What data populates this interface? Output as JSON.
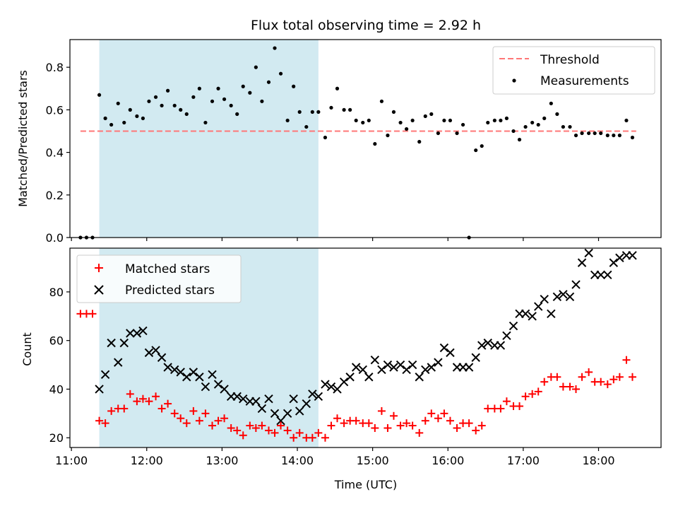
{
  "chart_data": [
    {
      "type": "scatter",
      "title": "Flux total observing time = 2.92 h",
      "xlabel": "",
      "ylabel": "Matched/Predicted stars",
      "xlim": [
        10.98,
        18.83
      ],
      "ylim": [
        0.0,
        0.93
      ],
      "yticks": [
        0.0,
        0.2,
        0.4,
        0.6,
        0.8
      ],
      "ytick_labels": [
        "0.0",
        "0.2",
        "0.4",
        "0.6",
        "0.8"
      ],
      "xticks": [
        11,
        12,
        13,
        14,
        15,
        16,
        17,
        18
      ],
      "shaded_span": [
        11.37,
        14.28
      ],
      "threshold": {
        "value": 0.5,
        "x_range": [
          11.12,
          18.5
        ],
        "color": "#ff7777"
      },
      "legend": {
        "placement": "top-right",
        "entries": [
          "Threshold",
          "Measurements"
        ]
      },
      "series": [
        {
          "name": "Measurements",
          "marker": "dot",
          "color": "#000000",
          "x": [
            11.12,
            11.2,
            11.28,
            11.37,
            11.45,
            11.53,
            11.62,
            11.7,
            11.78,
            11.87,
            11.95,
            12.03,
            12.12,
            12.2,
            12.28,
            12.37,
            12.45,
            12.53,
            12.62,
            12.7,
            12.78,
            12.87,
            12.95,
            13.03,
            13.12,
            13.2,
            13.28,
            13.37,
            13.45,
            13.53,
            13.62,
            13.7,
            13.78,
            13.87,
            13.95,
            14.03,
            14.12,
            14.2,
            14.28,
            14.37,
            14.45,
            14.53,
            14.62,
            14.7,
            14.78,
            14.87,
            14.95,
            15.03,
            15.12,
            15.2,
            15.28,
            15.37,
            15.45,
            15.53,
            15.62,
            15.7,
            15.78,
            15.87,
            15.95,
            16.03,
            16.12,
            16.2,
            16.28,
            16.37,
            16.45,
            16.53,
            16.62,
            16.7,
            16.78,
            16.87,
            16.95,
            17.03,
            17.12,
            17.2,
            17.28,
            17.37,
            17.45,
            17.53,
            17.62,
            17.7,
            17.78,
            17.87,
            17.95,
            18.03,
            18.12,
            18.2,
            18.28,
            18.37,
            18.45
          ],
          "values": [
            0.0,
            0.0,
            0.0,
            0.67,
            0.56,
            0.53,
            0.63,
            0.54,
            0.6,
            0.57,
            0.56,
            0.64,
            0.66,
            0.62,
            0.69,
            0.62,
            0.6,
            0.58,
            0.66,
            0.7,
            0.54,
            0.64,
            0.7,
            0.65,
            0.62,
            0.58,
            0.71,
            0.68,
            0.8,
            0.64,
            0.73,
            0.89,
            0.77,
            0.55,
            0.71,
            0.59,
            0.52,
            0.59,
            0.59,
            0.47,
            0.61,
            0.7,
            0.6,
            0.6,
            0.55,
            0.54,
            0.55,
            0.44,
            0.64,
            0.48,
            0.59,
            0.54,
            0.51,
            0.55,
            0.45,
            0.57,
            0.58,
            0.49,
            0.55,
            0.55,
            0.49,
            0.53,
            0.0,
            0.41,
            0.43,
            0.54,
            0.55,
            0.55,
            0.56,
            0.5,
            0.46,
            0.52,
            0.54,
            0.53,
            0.56,
            0.63,
            0.58,
            0.52,
            0.52,
            0.48,
            0.49,
            0.49,
            0.49,
            0.49,
            0.48,
            0.48,
            0.48,
            0.55,
            0.47
          ]
        }
      ]
    },
    {
      "type": "scatter",
      "title": "",
      "xlabel": "Time (UTC)",
      "ylabel": "Count",
      "xlim": [
        10.98,
        18.83
      ],
      "ylim": [
        16,
        98
      ],
      "yticks": [
        20,
        40,
        60,
        80
      ],
      "ytick_labels": [
        "20",
        "40",
        "60",
        "80"
      ],
      "xticks": [
        11,
        12,
        13,
        14,
        15,
        16,
        17,
        18
      ],
      "xtick_labels": [
        "11:00",
        "12:00",
        "13:00",
        "14:00",
        "15:00",
        "16:00",
        "17:00",
        "18:00"
      ],
      "shaded_span": [
        11.37,
        14.28
      ],
      "legend": {
        "placement": "top-left",
        "entries": [
          "Matched stars",
          "Predicted stars"
        ]
      },
      "series": [
        {
          "name": "Matched stars",
          "marker": "plus",
          "color": "#ff0000",
          "x": [
            11.12,
            11.2,
            11.28,
            11.37,
            11.45,
            11.53,
            11.62,
            11.7,
            11.78,
            11.87,
            11.95,
            12.03,
            12.12,
            12.2,
            12.28,
            12.37,
            12.45,
            12.53,
            12.62,
            12.7,
            12.78,
            12.87,
            12.95,
            13.03,
            13.12,
            13.2,
            13.28,
            13.37,
            13.45,
            13.53,
            13.62,
            13.7,
            13.78,
            13.87,
            13.95,
            14.03,
            14.12,
            14.2,
            14.28,
            14.37,
            14.45,
            14.53,
            14.62,
            14.7,
            14.78,
            14.87,
            14.95,
            15.03,
            15.12,
            15.2,
            15.28,
            15.37,
            15.45,
            15.53,
            15.62,
            15.7,
            15.78,
            15.87,
            15.95,
            16.03,
            16.12,
            16.2,
            16.28,
            16.37,
            16.45,
            16.53,
            16.62,
            16.7,
            16.78,
            16.87,
            16.95,
            17.03,
            17.12,
            17.2,
            17.28,
            17.37,
            17.45,
            17.53,
            17.62,
            17.7,
            17.78,
            17.87,
            17.95,
            18.03,
            18.12,
            18.2,
            18.28,
            18.37,
            18.45
          ],
          "values": [
            71,
            71,
            71,
            27,
            26,
            31,
            32,
            32,
            38,
            35,
            36,
            35,
            37,
            32,
            34,
            30,
            28,
            26,
            31,
            27,
            30,
            25,
            27,
            28,
            24,
            23,
            21,
            25,
            24,
            25,
            23,
            22,
            25,
            23,
            20,
            22,
            20,
            20,
            22,
            20,
            25,
            28,
            26,
            27,
            27,
            26,
            26,
            24,
            31,
            24,
            29,
            25,
            26,
            25,
            22,
            27,
            30,
            28,
            30,
            27,
            24,
            26,
            26,
            23,
            25,
            32,
            32,
            32,
            35,
            33,
            33,
            37,
            38,
            39,
            43,
            45,
            45,
            41,
            41,
            40,
            45,
            47,
            43,
            43,
            42,
            44,
            45,
            52,
            45
          ]
        },
        {
          "name": "Predicted stars",
          "marker": "x",
          "color": "#000000",
          "x": [
            11.37,
            11.45,
            11.53,
            11.62,
            11.7,
            11.78,
            11.87,
            11.95,
            12.03,
            12.12,
            12.2,
            12.28,
            12.37,
            12.45,
            12.53,
            12.62,
            12.7,
            12.78,
            12.87,
            12.95,
            13.03,
            13.12,
            13.2,
            13.28,
            13.37,
            13.45,
            13.53,
            13.62,
            13.7,
            13.78,
            13.87,
            13.95,
            14.03,
            14.12,
            14.2,
            14.28,
            14.37,
            14.45,
            14.53,
            14.62,
            14.7,
            14.78,
            14.87,
            14.95,
            15.03,
            15.12,
            15.2,
            15.28,
            15.37,
            15.45,
            15.53,
            15.62,
            15.7,
            15.78,
            15.87,
            15.95,
            16.03,
            16.12,
            16.2,
            16.28,
            16.37,
            16.45,
            16.53,
            16.62,
            16.7,
            16.78,
            16.87,
            16.95,
            17.03,
            17.12,
            17.2,
            17.28,
            17.37,
            17.45,
            17.53,
            17.62,
            17.7,
            17.78,
            17.87,
            17.95,
            18.03,
            18.12,
            18.2,
            18.28,
            18.37,
            18.45
          ],
          "values": [
            40,
            46,
            59,
            51,
            59,
            63,
            63,
            64,
            55,
            56,
            53,
            49,
            48,
            47,
            45,
            47,
            45,
            41,
            46,
            42,
            40,
            37,
            37,
            36,
            35,
            35,
            32,
            36,
            30,
            27,
            30,
            36,
            31,
            34,
            38,
            37,
            42,
            41,
            40,
            43,
            45,
            49,
            48,
            45,
            52,
            48,
            50,
            49,
            50,
            48,
            50,
            45,
            48,
            49,
            51,
            57,
            55,
            49,
            49,
            49,
            53,
            58,
            59,
            58,
            58,
            62,
            66,
            71,
            71,
            70,
            74,
            77,
            71,
            78,
            79,
            78,
            83,
            92,
            96,
            87,
            87,
            87,
            92,
            94,
            95,
            95
          ]
        }
      ]
    }
  ]
}
